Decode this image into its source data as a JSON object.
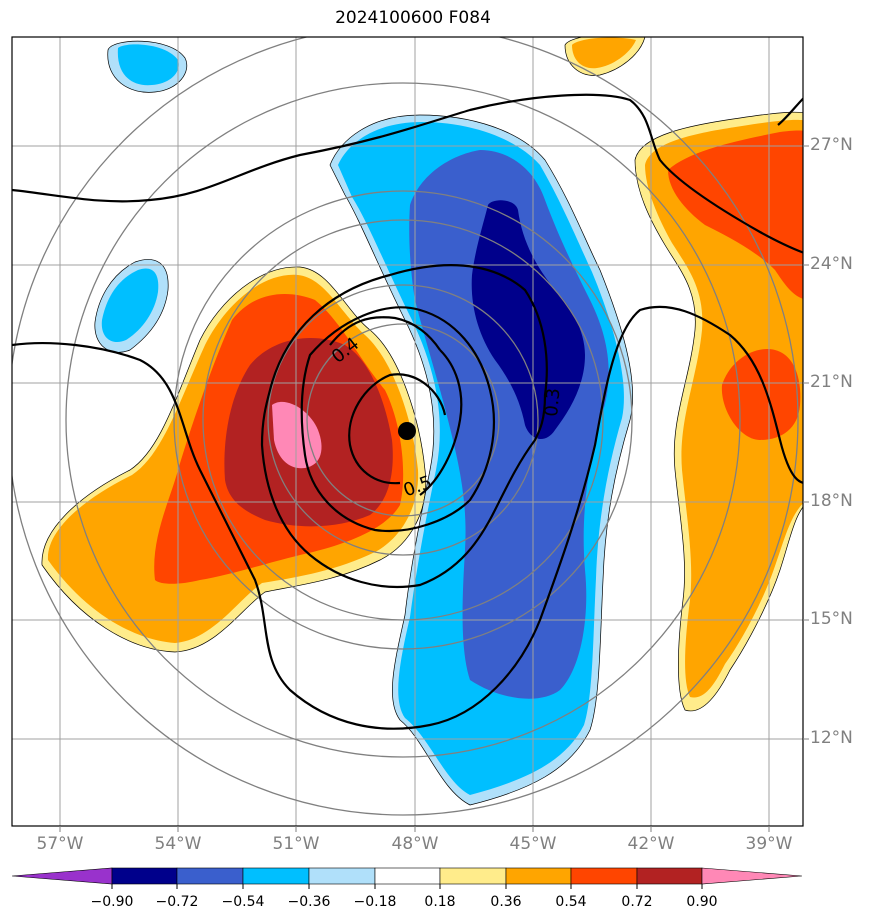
{
  "title": "2024100600 F084",
  "map": {
    "lon_ticks": [
      "57°W",
      "54°W",
      "51°W",
      "48°W",
      "45°W",
      "42°W",
      "39°W"
    ],
    "lat_ticks": [
      "27°N",
      "24°N",
      "21°N",
      "18°N",
      "15°N",
      "12°N"
    ],
    "contour_labels": [
      "0.4",
      "0.5",
      "0.3"
    ],
    "storm_center": {
      "lon": -48.1,
      "lat": 19.7
    },
    "line_color": "#000000",
    "grid_color": "#a0a0a0",
    "range_ring_color": "#808080"
  },
  "colorbar": {
    "labels": [
      "−0.90",
      "−0.72",
      "−0.54",
      "−0.36",
      "−0.18",
      "0.18",
      "0.36",
      "0.54",
      "0.72",
      "0.90"
    ],
    "colors": [
      "#9932cc",
      "#00008b",
      "#3a5fcd",
      "#00bfff",
      "#b0e0fa",
      "#ffffff",
      "#ffec8b",
      "#ffa500",
      "#ff4500",
      "#b22222",
      "#ff88b6"
    ]
  }
}
